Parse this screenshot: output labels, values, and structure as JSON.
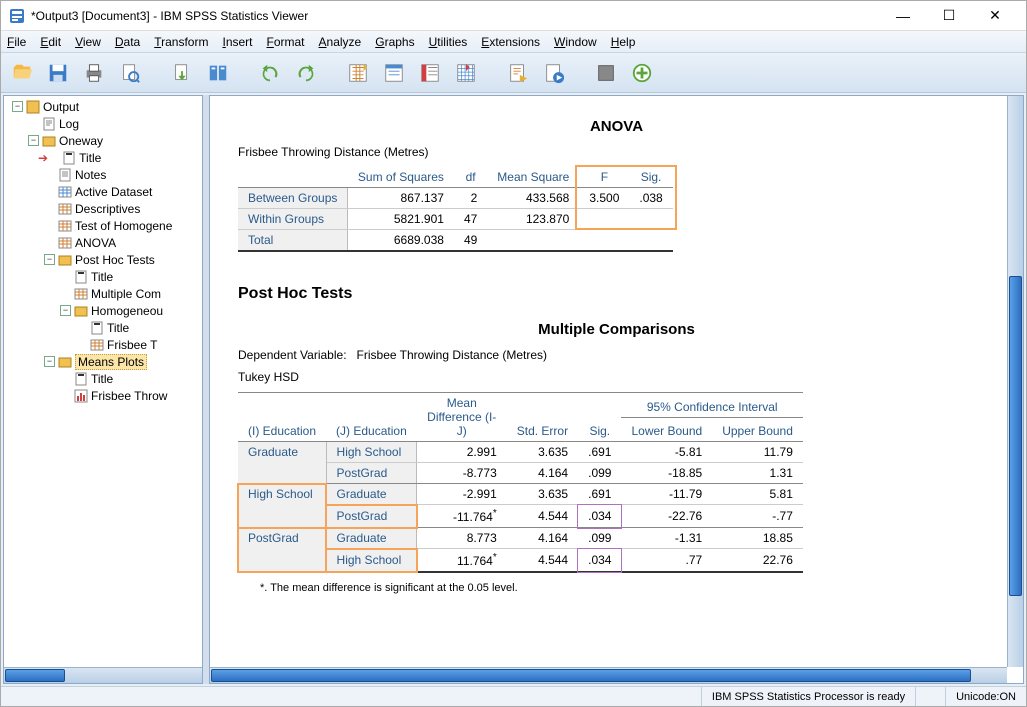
{
  "window": {
    "title": "*Output3 [Document3] - IBM SPSS Statistics Viewer"
  },
  "menu": {
    "items": [
      "File",
      "Edit",
      "View",
      "Data",
      "Transform",
      "Insert",
      "Format",
      "Analyze",
      "Graphs",
      "Utilities",
      "Extensions",
      "Window",
      "Help"
    ]
  },
  "tree": {
    "items": [
      {
        "indent": 0,
        "toggle": "-",
        "icon": "output",
        "label": "Output"
      },
      {
        "indent": 1,
        "toggle": "",
        "icon": "log",
        "label": "Log"
      },
      {
        "indent": 1,
        "toggle": "-",
        "icon": "folder",
        "label": "Oneway"
      },
      {
        "indent": 2,
        "toggle": "",
        "icon": "title",
        "label": "Title",
        "marker": true
      },
      {
        "indent": 2,
        "toggle": "",
        "icon": "notes",
        "label": "Notes"
      },
      {
        "indent": 2,
        "toggle": "",
        "icon": "ds",
        "label": "Active Dataset"
      },
      {
        "indent": 2,
        "toggle": "",
        "icon": "tbl",
        "label": "Descriptives"
      },
      {
        "indent": 2,
        "toggle": "",
        "icon": "tbl",
        "label": "Test of Homogene"
      },
      {
        "indent": 2,
        "toggle": "",
        "icon": "tbl",
        "label": "ANOVA"
      },
      {
        "indent": 2,
        "toggle": "-",
        "icon": "folder",
        "label": "Post Hoc Tests"
      },
      {
        "indent": 3,
        "toggle": "",
        "icon": "title",
        "label": "Title"
      },
      {
        "indent": 3,
        "toggle": "",
        "icon": "tbl",
        "label": "Multiple Com"
      },
      {
        "indent": 3,
        "toggle": "-",
        "icon": "folder",
        "label": "Homogeneou"
      },
      {
        "indent": 4,
        "toggle": "",
        "icon": "title",
        "label": "Title"
      },
      {
        "indent": 4,
        "toggle": "",
        "icon": "tbl",
        "label": "Frisbee T"
      },
      {
        "indent": 2,
        "toggle": "-",
        "icon": "folder",
        "label": "Means Plots",
        "selected": true
      },
      {
        "indent": 3,
        "toggle": "",
        "icon": "title",
        "label": "Title"
      },
      {
        "indent": 3,
        "toggle": "",
        "icon": "chart",
        "label": "Frisbee Throw"
      }
    ]
  },
  "anova": {
    "title": "ANOVA",
    "caption": "Frisbee Throwing Distance (Metres)",
    "headers": [
      "",
      "Sum of Squares",
      "df",
      "Mean Square",
      "F",
      "Sig."
    ],
    "rows": [
      {
        "label": "Between Groups",
        "ss": "867.137",
        "df": "2",
        "ms": "433.568",
        "f": "3.500",
        "sig": ".038"
      },
      {
        "label": "Within Groups",
        "ss": "5821.901",
        "df": "47",
        "ms": "123.870",
        "f": "",
        "sig": ""
      },
      {
        "label": "Total",
        "ss": "6689.038",
        "df": "49",
        "ms": "",
        "f": "",
        "sig": ""
      }
    ],
    "highlight_f_sig": true
  },
  "posthoc": {
    "section": "Post Hoc Tests",
    "title": "Multiple Comparisons",
    "dv_label": "Dependent Variable:",
    "dv_value": "Frisbee Throwing Distance (Metres)",
    "method": "Tukey HSD",
    "ci_label": "95% Confidence Interval",
    "headers": {
      "i": "(I) Education",
      "j": "(J) Education",
      "md": "Mean Difference (I-J)",
      "se": "Std. Error",
      "sig": "Sig.",
      "lb": "Lower Bound",
      "ub": "Upper Bound"
    },
    "groups": [
      {
        "i": "Graduate",
        "rows": [
          {
            "j": "High School",
            "md": "2.991",
            "se": "3.635",
            "sig": ".691",
            "lb": "-5.81",
            "ub": "11.79"
          },
          {
            "j": "PostGrad",
            "md": "-8.773",
            "se": "4.164",
            "sig": ".099",
            "lb": "-18.85",
            "ub": "1.31"
          }
        ]
      },
      {
        "i": "High School",
        "rows": [
          {
            "j": "Graduate",
            "md": "-2.991",
            "se": "3.635",
            "sig": ".691",
            "lb": "-11.79",
            "ub": "5.81"
          },
          {
            "j": "PostGrad",
            "md": "-11.764*",
            "se": "4.544",
            "sig": ".034",
            "lb": "-22.76",
            "ub": "-.77"
          }
        ]
      },
      {
        "i": "PostGrad",
        "rows": [
          {
            "j": "Graduate",
            "md": "8.773",
            "se": "4.164",
            "sig": ".099",
            "lb": "-1.31",
            "ub": "18.85"
          },
          {
            "j": "High School",
            "md": "11.764*",
            "se": "4.544",
            "sig": ".034",
            "lb": ".77",
            "ub": "22.76"
          }
        ]
      }
    ],
    "footnote": "*. The mean difference is significant at the 0.05 level."
  },
  "status": {
    "processor": "IBM SPSS Statistics Processor is ready",
    "unicode": "Unicode:ON"
  },
  "colors": {
    "accent": "#2a5a8a",
    "highlight_orange": "#f5a45a",
    "highlight_purple": "#b070c0"
  }
}
